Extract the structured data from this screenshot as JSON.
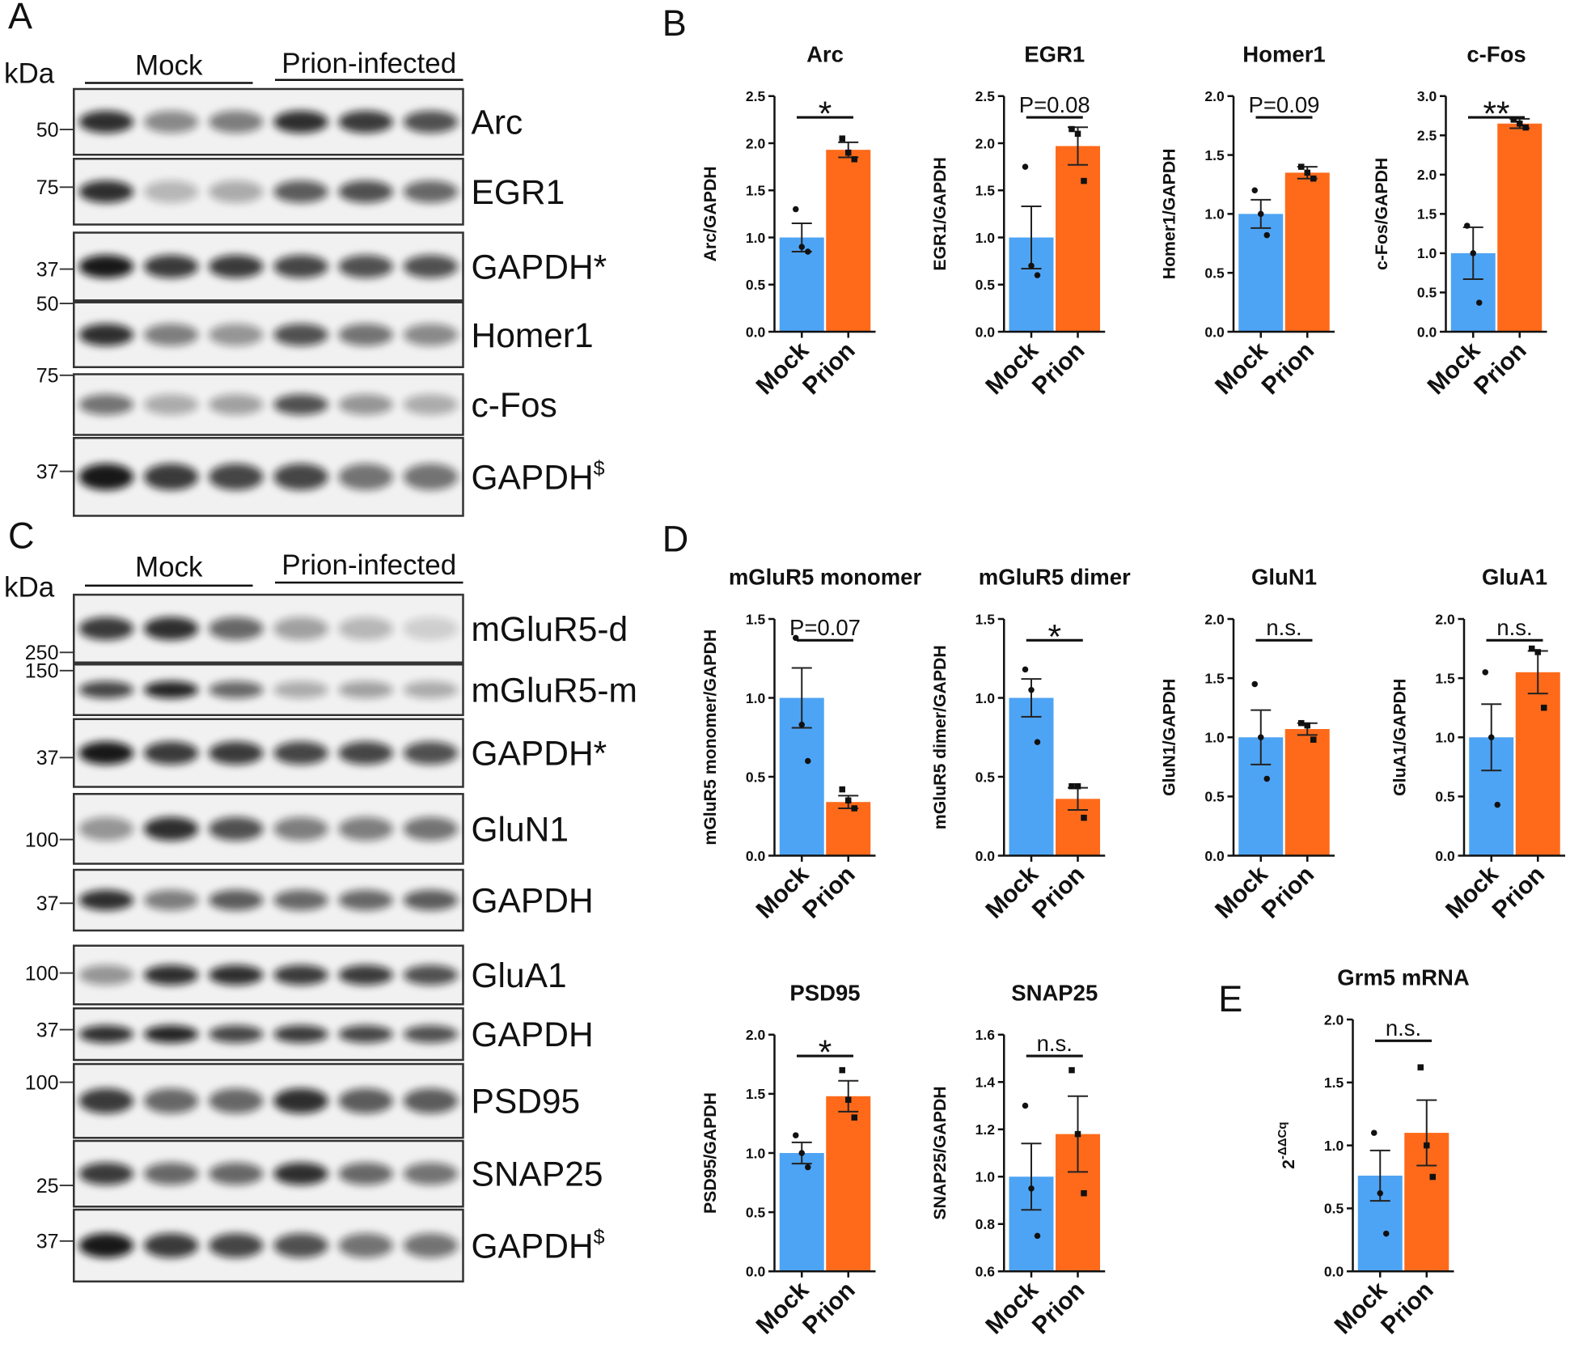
{
  "panels": [
    "A",
    "B",
    "C",
    "D",
    "E"
  ],
  "blots": [
    {
      "kda": "kDa",
      "groups": [
        "Mock",
        "Prion-infected"
      ],
      "rows": [
        {
          "label": "Arc",
          "marker": 50
        },
        {
          "label": "EGR1",
          "marker": 75
        },
        {
          "label": "GAPDH*",
          "marker": 37
        },
        {
          "label": "Homer1",
          "marker": 50
        },
        {
          "label": "c-Fos",
          "marker": 75
        },
        {
          "label": "GAPDH",
          "sup": "$",
          "marker": 37
        }
      ]
    },
    {
      "kda": "kDa",
      "groups": [
        "Mock",
        "Prion-infected"
      ],
      "rows": [
        {
          "label": "mGluR5-d",
          "marker": 250
        },
        {
          "label": "mGluR5-m",
          "marker": 150
        },
        {
          "label": "GAPDH*",
          "marker": 37
        },
        {
          "label": "GluN1",
          "marker": 100
        },
        {
          "label": "GAPDH",
          "marker": 37
        },
        {
          "label": "GluA1",
          "marker": 100
        },
        {
          "label": "GAPDH",
          "marker": 37
        },
        {
          "label": "PSD95",
          "marker": 100
        },
        {
          "label": "SNAP25",
          "marker": 25
        },
        {
          "label": "GAPDH",
          "sup": "$",
          "marker": 37
        }
      ]
    }
  ],
  "chart_data": [
    {
      "type": "bar",
      "title": "Arc",
      "ylabel": "Arc/GAPDH",
      "categories": [
        "Mock",
        "Prion"
      ],
      "colors": [
        "#4ea4f4",
        "#ff6a1a"
      ],
      "values": [
        1.0,
        1.93
      ],
      "errors": [
        0.15,
        0.08
      ],
      "points": [
        [
          1.3,
          0.9,
          0.85
        ],
        [
          2.05,
          1.9,
          1.83
        ]
      ],
      "ylim": [
        0,
        2.5
      ],
      "yticks": [
        {
          "value": 0,
          "label": "0.0"
        },
        {
          "value": 0.5,
          "label": "0.5"
        },
        {
          "value": 1,
          "label": "1.0"
        },
        {
          "value": 1.5,
          "label": "1.5"
        },
        {
          "value": 2,
          "label": "2.0"
        },
        {
          "value": 2.5,
          "label": "2.5"
        }
      ],
      "annotation": "*"
    },
    {
      "type": "bar",
      "title": "EGR1",
      "ylabel": "EGR1/GAPDH",
      "categories": [
        "Mock",
        "Prion"
      ],
      "colors": [
        "#4ea4f4",
        "#ff6a1a"
      ],
      "values": [
        1.0,
        1.97
      ],
      "errors": [
        0.33,
        0.2
      ],
      "points": [
        [
          1.75,
          0.7,
          0.6
        ],
        [
          2.15,
          2.1,
          1.6
        ]
      ],
      "ylim": [
        0,
        2.5
      ],
      "yticks": [
        {
          "value": 0,
          "label": "0.0"
        },
        {
          "value": 0.5,
          "label": "0.5"
        },
        {
          "value": 1,
          "label": "1.0"
        },
        {
          "value": 1.5,
          "label": "1.5"
        },
        {
          "value": 2,
          "label": "2.0"
        },
        {
          "value": 2.5,
          "label": "2.5"
        }
      ],
      "annotation": "P=0.08"
    },
    {
      "type": "bar",
      "title": "Homer1",
      "ylabel": "Homer1/GAPDH",
      "categories": [
        "Mock",
        "Prion"
      ],
      "colors": [
        "#4ea4f4",
        "#ff6a1a"
      ],
      "values": [
        1.0,
        1.35
      ],
      "errors": [
        0.12,
        0.05
      ],
      "points": [
        [
          1.2,
          1.0,
          0.82
        ],
        [
          1.4,
          1.35,
          1.3
        ]
      ],
      "ylim": [
        0,
        2
      ],
      "yticks": [
        {
          "value": 0,
          "label": "0.0"
        },
        {
          "value": 0.5,
          "label": "0.5"
        },
        {
          "value": 1,
          "label": "1.0"
        },
        {
          "value": 1.5,
          "label": "1.5"
        },
        {
          "value": 2,
          "label": "2.0"
        }
      ],
      "annotation": "P=0.09"
    },
    {
      "type": "bar",
      "title": "c-Fos",
      "ylabel": "c-Fos/GAPDH",
      "categories": [
        "Mock",
        "Prion"
      ],
      "colors": [
        "#4ea4f4",
        "#ff6a1a"
      ],
      "values": [
        1.0,
        2.65
      ],
      "errors": [
        0.33,
        0.06
      ],
      "points": [
        [
          1.35,
          1.0,
          0.37
        ],
        [
          2.7,
          2.65,
          2.6
        ]
      ],
      "ylim": [
        0,
        3
      ],
      "yticks": [
        {
          "value": 0,
          "label": "0.0"
        },
        {
          "value": 0.5,
          "label": "0.5"
        },
        {
          "value": 1,
          "label": "1.0"
        },
        {
          "value": 1.5,
          "label": "1.5"
        },
        {
          "value": 2,
          "label": "2.0"
        },
        {
          "value": 2.5,
          "label": "2.5"
        },
        {
          "value": 3,
          "label": "3.0"
        }
      ],
      "annotation": "**"
    },
    {
      "type": "bar",
      "title": "mGluR5 monomer",
      "ylabel": "mGluR5 monomer/GAPDH",
      "categories": [
        "Mock",
        "Prion"
      ],
      "colors": [
        "#4ea4f4",
        "#ff6a1a"
      ],
      "values": [
        1.0,
        0.34
      ],
      "errors": [
        0.19,
        0.04
      ],
      "points": [
        [
          1.38,
          0.83,
          0.6
        ],
        [
          0.42,
          0.35,
          0.3
        ]
      ],
      "ylim": [
        0,
        1.5
      ],
      "yticks": [
        {
          "value": 0,
          "label": "0.0"
        },
        {
          "value": 0.5,
          "label": "0.5"
        },
        {
          "value": 1,
          "label": "1.0"
        },
        {
          "value": 1.5,
          "label": "1.5"
        }
      ],
      "annotation": "P=0.07"
    },
    {
      "type": "bar",
      "title": "mGluR5 dimer",
      "ylabel": "mGluR5 dimer/GAPDH",
      "categories": [
        "Mock",
        "Prion"
      ],
      "colors": [
        "#4ea4f4",
        "#ff6a1a"
      ],
      "values": [
        1.0,
        0.36
      ],
      "errors": [
        0.12,
        0.07
      ],
      "points": [
        [
          1.18,
          1.05,
          0.72
        ],
        [
          0.44,
          0.44,
          0.24
        ]
      ],
      "ylim": [
        0,
        1.5
      ],
      "yticks": [
        {
          "value": 0,
          "label": "0.0"
        },
        {
          "value": 0.5,
          "label": "0.5"
        },
        {
          "value": 1,
          "label": "1.0"
        },
        {
          "value": 1.5,
          "label": "1.5"
        }
      ],
      "annotation": "*"
    },
    {
      "type": "bar",
      "title": "GluN1",
      "ylabel": "GluN1/GAPDH",
      "categories": [
        "Mock",
        "Prion"
      ],
      "colors": [
        "#4ea4f4",
        "#ff6a1a"
      ],
      "values": [
        1.0,
        1.07
      ],
      "errors": [
        0.23,
        0.05
      ],
      "points": [
        [
          1.45,
          1.0,
          0.65
        ],
        [
          1.12,
          1.1,
          0.98
        ]
      ],
      "ylim": [
        0,
        2
      ],
      "yticks": [
        {
          "value": 0,
          "label": "0.0"
        },
        {
          "value": 0.5,
          "label": "0.5"
        },
        {
          "value": 1,
          "label": "1.0"
        },
        {
          "value": 1.5,
          "label": "1.5"
        },
        {
          "value": 2,
          "label": "2.0"
        }
      ],
      "annotation": "n.s."
    },
    {
      "type": "bar",
      "title": "GluA1",
      "ylabel": "GluA1/GAPDH",
      "categories": [
        "Mock",
        "Prion"
      ],
      "colors": [
        "#4ea4f4",
        "#ff6a1a"
      ],
      "values": [
        1.0,
        1.55
      ],
      "errors": [
        0.28,
        0.18
      ],
      "points": [
        [
          1.55,
          1.0,
          0.43
        ],
        [
          1.75,
          1.72,
          1.25
        ]
      ],
      "ylim": [
        0,
        2
      ],
      "yticks": [
        {
          "value": 0,
          "label": "0.0"
        },
        {
          "value": 0.5,
          "label": "0.5"
        },
        {
          "value": 1,
          "label": "1.0"
        },
        {
          "value": 1.5,
          "label": "1.5"
        },
        {
          "value": 2,
          "label": "2.0"
        }
      ],
      "annotation": "n.s."
    },
    {
      "type": "bar",
      "title": "PSD95",
      "ylabel": "PSD95/GAPDH",
      "categories": [
        "Mock",
        "Prion"
      ],
      "colors": [
        "#4ea4f4",
        "#ff6a1a"
      ],
      "values": [
        1.0,
        1.48
      ],
      "errors": [
        0.09,
        0.13
      ],
      "points": [
        [
          1.15,
          1.0,
          0.88
        ],
        [
          1.7,
          1.45,
          1.3
        ]
      ],
      "ylim": [
        0,
        2
      ],
      "yticks": [
        {
          "value": 0,
          "label": "0.0"
        },
        {
          "value": 0.5,
          "label": "0.5"
        },
        {
          "value": 1,
          "label": "1.0"
        },
        {
          "value": 1.5,
          "label": "1.5"
        },
        {
          "value": 2,
          "label": "2.0"
        }
      ],
      "annotation": "*"
    },
    {
      "type": "bar",
      "title": "SNAP25",
      "ylabel": "SNAP25/GAPDH",
      "categories": [
        "Mock",
        "Prion"
      ],
      "colors": [
        "#4ea4f4",
        "#ff6a1a"
      ],
      "values": [
        1.0,
        1.18
      ],
      "errors": [
        0.14,
        0.16
      ],
      "points": [
        [
          1.3,
          0.95,
          0.75
        ],
        [
          1.45,
          1.18,
          0.93
        ]
      ],
      "ylim": [
        0.6,
        1.6
      ],
      "yticks": [
        {
          "value": 0.6,
          "label": "0.6"
        },
        {
          "value": 0.8,
          "label": "0.8"
        },
        {
          "value": 1,
          "label": "1.0"
        },
        {
          "value": 1.2,
          "label": "1.2"
        },
        {
          "value": 1.4,
          "label": "1.4"
        },
        {
          "value": 1.6,
          "label": "1.6"
        }
      ],
      "annotation": "n.s."
    },
    {
      "type": "bar",
      "title": "Grm5 mRNA",
      "ylabel": "2",
      "ylabel_sup": "-ΔΔCq",
      "categories": [
        "Mock",
        "Prion"
      ],
      "colors": [
        "#4ea4f4",
        "#ff6a1a"
      ],
      "values": [
        0.76,
        1.1
      ],
      "errors": [
        0.2,
        0.26
      ],
      "points": [
        [
          1.1,
          0.62,
          0.3
        ],
        [
          1.62,
          1.0,
          0.75
        ]
      ],
      "ylim": [
        0,
        2
      ],
      "yticks": [
        {
          "value": 0,
          "label": "0.0"
        },
        {
          "value": 0.5,
          "label": "0.5"
        },
        {
          "value": 1,
          "label": "1.0"
        },
        {
          "value": 1.5,
          "label": "1.5"
        },
        {
          "value": 2,
          "label": "2.0"
        }
      ],
      "annotation": "n.s."
    }
  ]
}
